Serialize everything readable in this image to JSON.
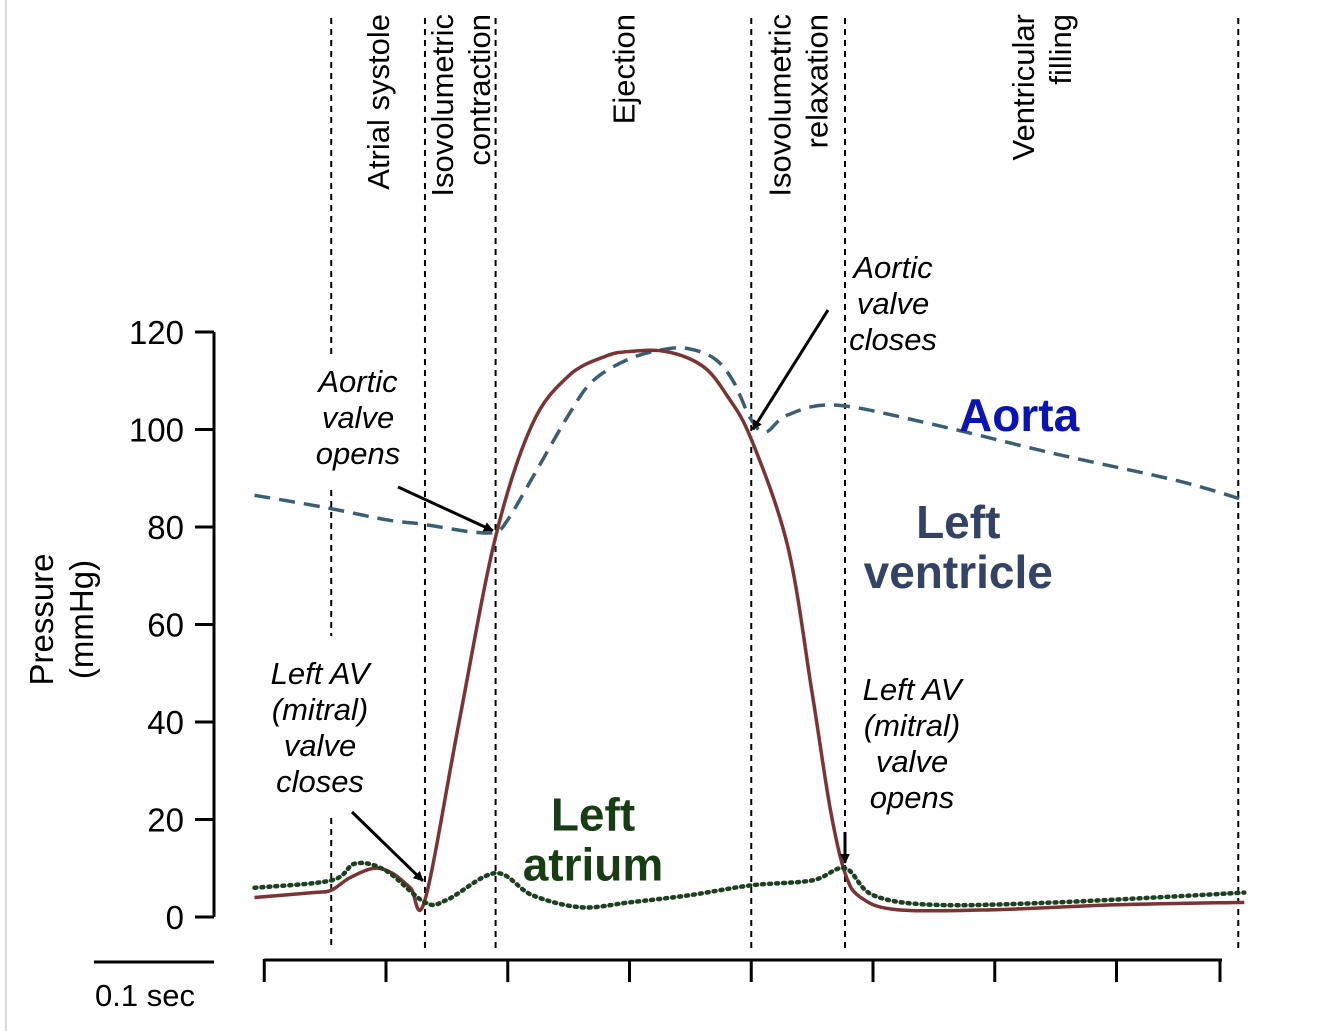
{
  "chart_data": {
    "type": "line",
    "title": "",
    "xlabel": "",
    "ylabel": [
      "Pressure",
      "(mmHg)"
    ],
    "ylim": [
      0,
      120
    ],
    "y_ticks": [
      0,
      20,
      40,
      60,
      80,
      100,
      120
    ],
    "x_unit": "sec",
    "xlim": [
      -0.015,
      0.785
    ],
    "time_scale_label": "0.1 sec",
    "time_scale_ticks": [
      0,
      0.1,
      0.2,
      0.3,
      0.4,
      0.5,
      0.6,
      0.7,
      0.8
    ],
    "grid": false,
    "phase_boundaries": [
      0.055,
      0.132,
      0.19,
      0.4,
      0.477,
      0.8
    ],
    "phases": [
      {
        "name": "atrial-systole",
        "lines": [
          "Atrial systole"
        ]
      },
      {
        "name": "isovolumetric-contraction",
        "lines": [
          "Isovolumetric",
          "contraction"
        ]
      },
      {
        "name": "ejection",
        "lines": [
          "Ejection"
        ]
      },
      {
        "name": "isovolumetric-relaxation",
        "lines": [
          "Isovolumetric",
          "relaxation"
        ]
      },
      {
        "name": "ventricular-filling",
        "lines": [
          "Ventricular",
          "filling"
        ]
      }
    ],
    "series": [
      {
        "name": "Aorta",
        "color": "#3b5f72",
        "style": "dashed",
        "label_lines": [
          "Aorta"
        ],
        "label_color": "#0a14b4",
        "x": [
          -0.008,
          0.05,
          0.1,
          0.132,
          0.17,
          0.19,
          0.2,
          0.22,
          0.25,
          0.27,
          0.3,
          0.33,
          0.35,
          0.37,
          0.385,
          0.4,
          0.412,
          0.43,
          0.47,
          0.55,
          0.65,
          0.75,
          0.805
        ],
        "y": [
          86.5,
          84,
          81.5,
          80.5,
          79,
          79,
          81.5,
          90,
          103,
          110,
          114.5,
          116.5,
          116.5,
          114.5,
          110,
          102,
          99.5,
          103,
          105,
          101,
          95,
          89.5,
          85.5
        ]
      },
      {
        "name": "Left ventricle",
        "color": "#7a3434",
        "style": "solid",
        "label_lines": [
          "Left",
          "ventricle"
        ],
        "label_color": "#334366",
        "x": [
          -0.008,
          0.04,
          0.055,
          0.07,
          0.09,
          0.105,
          0.12,
          0.132,
          0.16,
          0.19,
          0.22,
          0.25,
          0.28,
          0.3,
          0.33,
          0.36,
          0.38,
          0.4,
          0.43,
          0.45,
          0.465,
          0.477,
          0.49,
          0.52,
          0.6,
          0.7,
          0.805
        ],
        "y": [
          4,
          5,
          5.5,
          8,
          10,
          9,
          6,
          3.5,
          40,
          78,
          101,
          111,
          115,
          116,
          116,
          113,
          107,
          98,
          76,
          46,
          22,
          9,
          4,
          1.5,
          1.5,
          2.5,
          3
        ]
      },
      {
        "name": "Left atrium",
        "color": "#1f4020",
        "style": "dotted",
        "label_lines": [
          "Left",
          "atrium"
        ],
        "label_color": "#183d14",
        "x": [
          -0.008,
          0.055,
          0.075,
          0.1,
          0.132,
          0.15,
          0.19,
          0.22,
          0.26,
          0.3,
          0.35,
          0.4,
          0.45,
          0.477,
          0.5,
          0.55,
          0.65,
          0.805
        ],
        "y": [
          6,
          7.5,
          11,
          9.5,
          3,
          3.5,
          9,
          4.5,
          2,
          3,
          4.5,
          6.5,
          7.5,
          10,
          4.5,
          2.5,
          3,
          5
        ]
      }
    ],
    "annotations": [
      {
        "name": "aortic-valve-opens",
        "lines": [
          "Aortic",
          "valve",
          "opens"
        ],
        "point": [
          0.19,
          79
        ]
      },
      {
        "name": "aortic-valve-closes",
        "lines": [
          "Aortic",
          "valve",
          "closes"
        ],
        "point": [
          0.4,
          99.5
        ]
      },
      {
        "name": "mitral-valve-closes",
        "lines": [
          "Left AV",
          "(mitral)",
          "valve",
          "closes"
        ],
        "point": [
          0.132,
          7
        ]
      },
      {
        "name": "mitral-valve-opens",
        "lines": [
          "Left AV",
          "(mitral)",
          "valve",
          "opens"
        ],
        "point": [
          0.477,
          10.5
        ]
      }
    ]
  }
}
